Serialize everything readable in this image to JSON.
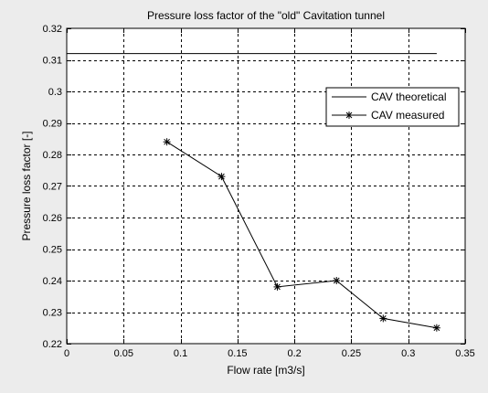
{
  "chart_data": {
    "type": "line",
    "title": "Pressure loss factor of the \"old\" Cavitation tunnel",
    "xlabel": "Flow rate [m3/s]",
    "ylabel": "Pressure loss factor [-]",
    "xlim": [
      0,
      0.35
    ],
    "ylim": [
      0.22,
      0.32
    ],
    "xticks": [
      0,
      0.05,
      0.1,
      0.15,
      0.2,
      0.25,
      0.3,
      0.35
    ],
    "xtick_labels": [
      "0",
      "0.05",
      "0.1",
      "0.15",
      "0.2",
      "0.25",
      "0.3",
      "0.35"
    ],
    "yticks": [
      0.22,
      0.23,
      0.24,
      0.25,
      0.26,
      0.27,
      0.28,
      0.29,
      0.3,
      0.31,
      0.32
    ],
    "ytick_labels": [
      "0.22",
      "0.23",
      "0.24",
      "0.25",
      "0.26",
      "0.27",
      "0.28",
      "0.29",
      "0.3",
      "0.31",
      "0.32"
    ],
    "grid": true,
    "legend_position": "top-right",
    "series": [
      {
        "name": "CAV theoretical",
        "style": "solid line, no markers",
        "color": "#000000",
        "x": [
          0,
          0.325
        ],
        "y": [
          0.312,
          0.312
        ]
      },
      {
        "name": "CAV measured",
        "style": "solid line with asterisk markers",
        "color": "#000000",
        "x": [
          0.088,
          0.136,
          0.185,
          0.237,
          0.278,
          0.325
        ],
        "y": [
          0.284,
          0.273,
          0.238,
          0.24,
          0.228,
          0.225
        ]
      }
    ]
  }
}
